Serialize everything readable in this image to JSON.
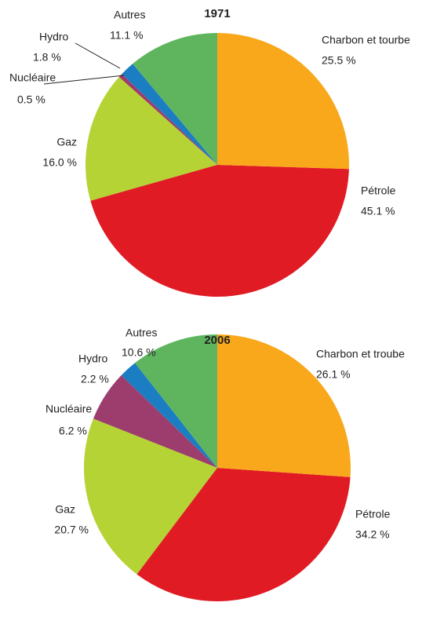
{
  "chart_data": [
    {
      "type": "pie",
      "title": "1971",
      "categories": [
        "Charbon et tourbe",
        "Pétrole",
        "Gaz",
        "Nucléaire",
        "Hydro",
        "Autres"
      ],
      "values": [
        25.5,
        45.1,
        16.0,
        0.5,
        1.8,
        11.1
      ],
      "value_labels": [
        "25.5 %",
        "45.1 %",
        "16.0 %",
        "0.5 %",
        "1.8 %",
        "11.1 %"
      ],
      "colors": [
        "#f9a81b",
        "#e01b24",
        "#b5d334",
        "#9c3d6e",
        "#1b7ec2",
        "#5fb55e"
      ]
    },
    {
      "type": "pie",
      "title": "2006",
      "categories": [
        "Charbon et troube",
        "Pétrole",
        "Gaz",
        "Nucléaire",
        "Hydro",
        "Autres"
      ],
      "values": [
        26.1,
        34.2,
        20.7,
        6.2,
        2.2,
        10.6
      ],
      "value_labels": [
        "26.1 %",
        "34.2 %",
        "20.7 %",
        "6.2 %",
        "2.2 %",
        "10.6 %"
      ],
      "colors": [
        "#f9a81b",
        "#e01b24",
        "#b5d334",
        "#9c3d6e",
        "#1b7ec2",
        "#5fb55e"
      ]
    }
  ]
}
